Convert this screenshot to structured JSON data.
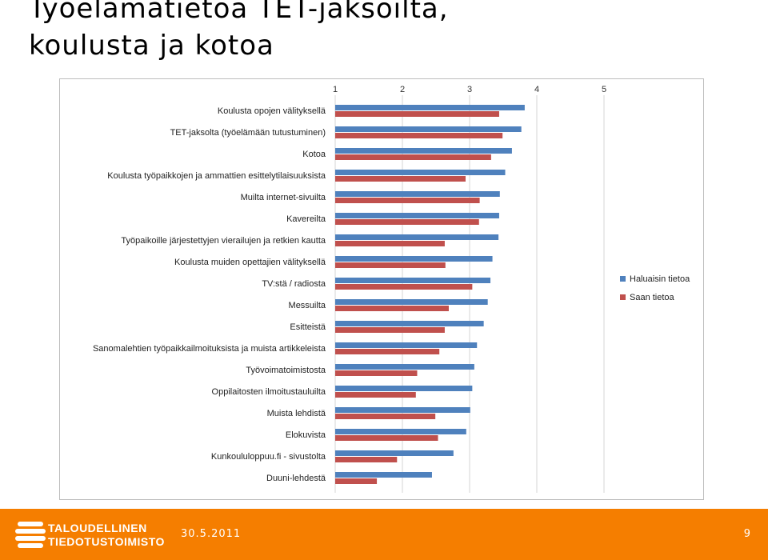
{
  "slide": {
    "title_line1": "Työelämätietoa TET-jaksoilta,",
    "title_line2": "koulusta ja kotoa"
  },
  "footer": {
    "org_line1": "TALOUDELLINEN",
    "org_line2": "TIEDOTUSTOIMISTO",
    "date": "30.5.2011",
    "page_number": "9",
    "logo_icon": "globe-stripes-icon",
    "background_color": "#f57e00"
  },
  "chart_data": {
    "type": "bar",
    "orientation": "horizontal",
    "x_ticks": [
      1,
      2,
      3,
      4,
      5
    ],
    "xlim": [
      1,
      5
    ],
    "x_axis_position": "top",
    "grid": true,
    "legend_position": "right",
    "categories": [
      "Koulusta opojen välityksellä",
      "TET-jaksolta (työelämään tutustuminen)",
      "Kotoa",
      "Koulusta työpaikkojen ja ammattien esittelytilaisuuksista",
      "Muilta internet-sivuilta",
      "Kavereilta",
      "Työpaikoille järjestettyjen vierailujen ja retkien kautta",
      "Koulusta muiden opettajien välityksellä",
      "TV:stä / radiosta",
      "Messuilta",
      "Esitteistä",
      "Sanomalehtien työpaikkailmoituksista ja muista artikkeleista",
      "Työvoimatoimistosta",
      "Oppilaitosten ilmoitustauluilta",
      "Muista lehdistä",
      "Elokuvista",
      "Kunkoululoppuu.fi - sivustolta",
      "Duuni-lehdestä"
    ],
    "series": [
      {
        "name": "Haluaisin tietoa",
        "color": "#4f81bd",
        "values": [
          3.82,
          3.77,
          3.63,
          3.53,
          3.45,
          3.44,
          3.43,
          3.34,
          3.31,
          3.27,
          3.21,
          3.11,
          3.07,
          3.04,
          3.01,
          2.95,
          2.76,
          2.44
        ]
      },
      {
        "name": "Saan tietoa",
        "color": "#c0504d",
        "values": [
          3.44,
          3.49,
          3.32,
          2.94,
          3.15,
          3.14,
          2.63,
          2.64,
          3.04,
          2.69,
          2.63,
          2.55,
          2.22,
          2.2,
          2.49,
          2.53,
          1.92,
          1.62
        ]
      }
    ]
  }
}
